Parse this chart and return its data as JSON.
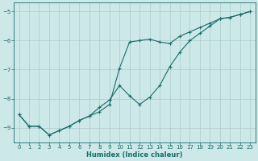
{
  "xlabel": "Humidex (Indice chaleur)",
  "ylabel": "",
  "background_color": "#cce8e8",
  "grid_color": "#aacccc",
  "line_color": "#1a6b6b",
  "xlim": [
    -0.5,
    23.5
  ],
  "ylim": [
    -9.5,
    -4.7
  ],
  "x_ticks": [
    0,
    1,
    2,
    3,
    4,
    5,
    6,
    7,
    8,
    9,
    10,
    11,
    12,
    13,
    14,
    15,
    16,
    17,
    18,
    19,
    20,
    21,
    22,
    23
  ],
  "y_ticks": [
    -9,
    -8,
    -7,
    -6,
    -5
  ],
  "line1_x": [
    0,
    1,
    2,
    3,
    4,
    5,
    6,
    7,
    8,
    9,
    10,
    11,
    12,
    13,
    14,
    15,
    16,
    17,
    18,
    19,
    20,
    21,
    22,
    23
  ],
  "line1_y": [
    -8.55,
    -8.95,
    -8.95,
    -9.25,
    -9.1,
    -8.95,
    -8.75,
    -8.6,
    -8.45,
    -8.2,
    -6.95,
    -6.05,
    -6.0,
    -5.95,
    -6.05,
    -6.1,
    -5.85,
    -5.7,
    -5.55,
    -5.4,
    -5.25,
    -5.2,
    -5.1,
    -5.0
  ],
  "line2_x": [
    0,
    1,
    2,
    3,
    4,
    5,
    6,
    7,
    8,
    9,
    10,
    11,
    12,
    13,
    14,
    15,
    16,
    17,
    18,
    19,
    20,
    21,
    22,
    23
  ],
  "line2_y": [
    -8.55,
    -8.95,
    -8.95,
    -9.25,
    -9.1,
    -8.95,
    -8.75,
    -8.6,
    -8.3,
    -8.05,
    -7.55,
    -7.9,
    -8.2,
    -7.95,
    -7.55,
    -6.9,
    -6.4,
    -6.0,
    -5.75,
    -5.5,
    -5.25,
    -5.2,
    -5.1,
    -5.0
  ],
  "tick_fontsize": 5.0,
  "xlabel_fontsize": 6.0
}
